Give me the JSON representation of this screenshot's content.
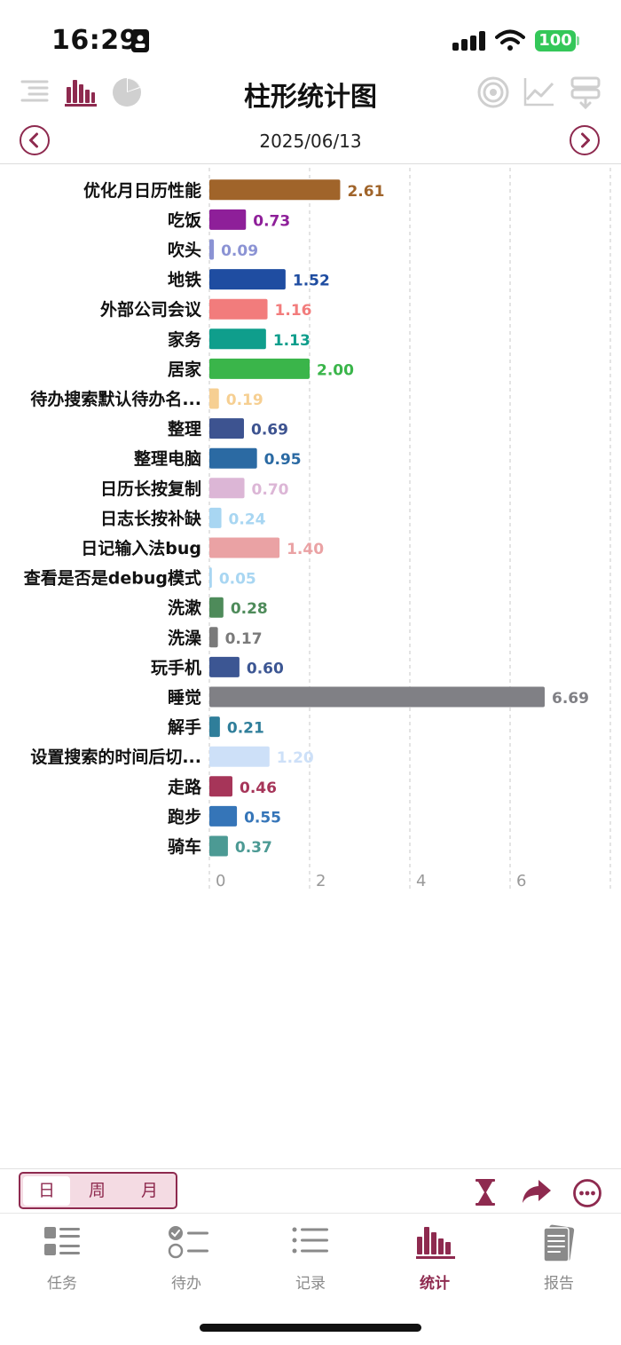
{
  "status_bar": {
    "time": "16:29",
    "battery": "100"
  },
  "toolbar": {
    "title": "柱形统计图",
    "left_icons": [
      "list-indent-icon",
      "bar-chart-icon",
      "pie-chart-icon"
    ],
    "right_icons": [
      "target-icon",
      "line-chart-icon",
      "filter-stack-icon"
    ]
  },
  "date_nav": {
    "date": "2025/06/13"
  },
  "chart_data": {
    "type": "bar",
    "orientation": "horizontal",
    "xlim": [
      0,
      8
    ],
    "x_ticks": [
      "0",
      "2",
      "4",
      "6"
    ],
    "grid": "vertical dashed",
    "categories": [
      "优化月日历性能",
      "吃饭",
      "吹头",
      "地铁",
      "外部公司会议",
      "家务",
      "居家",
      "待办搜索默认待办名...",
      "整理",
      "整理电脑",
      "日历长按复制",
      "日志长按补缺",
      "日记输入法bug",
      "查看是否是debug模式",
      "洗漱",
      "洗澡",
      "玩手机",
      "睡觉",
      "解手",
      "设置搜索的时间后切...",
      "走路",
      "跑步",
      "骑车"
    ],
    "values": [
      2.61,
      0.73,
      0.09,
      1.52,
      1.16,
      1.13,
      2.0,
      0.19,
      0.69,
      0.95,
      0.7,
      0.24,
      1.4,
      0.05,
      0.28,
      0.17,
      0.6,
      6.69,
      0.21,
      1.2,
      0.46,
      0.55,
      0.37
    ],
    "value_labels": [
      "2.61",
      "0.73",
      "0.09",
      "1.52",
      "1.16",
      "1.13",
      "2.00",
      "0.19",
      "0.69",
      "0.95",
      "0.70",
      "0.24",
      "1.40",
      "0.05",
      "0.28",
      "0.17",
      "0.60",
      "6.69",
      "0.21",
      "1.20",
      "0.46",
      "0.55",
      "0.37"
    ],
    "colors": [
      "#a0642a",
      "#8e1f99",
      "#8b93d4",
      "#1f4da1",
      "#f27c7c",
      "#0f9e8c",
      "#3ab54a",
      "#f6cf92",
      "#3d5390",
      "#2b6aa3",
      "#dcb6d6",
      "#a8d6f2",
      "#eaa2a4",
      "#a8d6f2",
      "#4e8b5a",
      "#7a7a7a",
      "#3c5693",
      "#808085",
      "#2f7e9a",
      "#cde0f8",
      "#a63559",
      "#3575b8",
      "#4c9a94"
    ]
  },
  "bottom_bar": {
    "segments": [
      "日",
      "周",
      "月"
    ],
    "active_segment": "日",
    "actions": [
      "hourglass-icon",
      "share-arrow-icon",
      "more-icon"
    ]
  },
  "tabs": [
    {
      "label": "任务",
      "icon": "task-list-icon"
    },
    {
      "label": "待办",
      "icon": "todo-icon"
    },
    {
      "label": "记录",
      "icon": "record-list-icon"
    },
    {
      "label": "统计",
      "icon": "stats-icon",
      "active": true
    },
    {
      "label": "报告",
      "icon": "report-icon"
    }
  ],
  "colors": {
    "accent": "#8e2a4f",
    "inactive": "#8a8a8a"
  }
}
